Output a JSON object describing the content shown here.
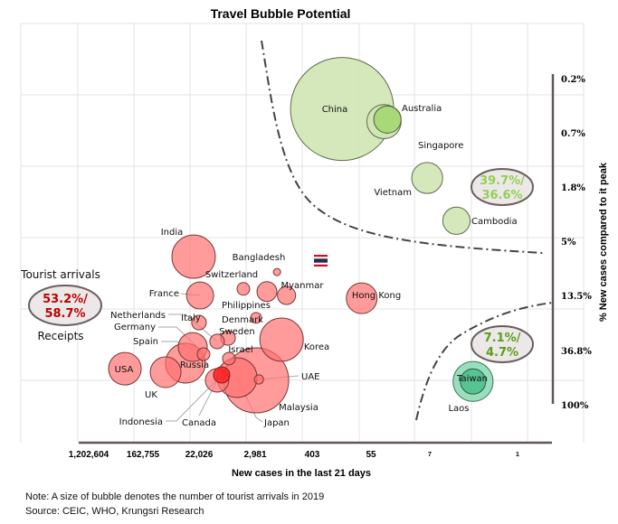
{
  "chart_data": {
    "type": "bubble",
    "title": "Travel Bubble Potential",
    "xlabel": "New cases in the last 21 days",
    "ylabel": "% New cases compared to it peak",
    "x_scale": "log, reversed",
    "y_scale": "log",
    "x_ticks": [
      "1,202,604",
      "162,755",
      "22,026",
      "2,981",
      "403",
      "55",
      "7",
      "1"
    ],
    "y_ticks": [
      "0.2%",
      "0.7%",
      "1.8%",
      "5%",
      "13.5%",
      "36.8%",
      "100%"
    ],
    "grid": true,
    "colors": {
      "red_group": "#ff7f7f",
      "green_group": "#cfe6b4",
      "dark_green": "#9fd46a",
      "teal": "#4fc08d"
    },
    "points": [
      {
        "name": "China",
        "x": 154,
        "y": 0.42,
        "size": 100,
        "group": "green"
      },
      {
        "name": "Singapore",
        "x": 35,
        "y": 0.53,
        "size": 11,
        "group": "green"
      },
      {
        "name": "Australia",
        "x": 31,
        "y": 0.51,
        "size": 7,
        "group": "dark_green"
      },
      {
        "name": "Vietnam",
        "x": 7.6,
        "y": 1.5,
        "size": 9,
        "group": "green"
      },
      {
        "name": "Cambodia",
        "x": 2.7,
        "y": 3.3,
        "size": 7,
        "group": "green"
      },
      {
        "name": "Laos",
        "x": 1.5,
        "y": 64,
        "size": 15,
        "group": "teal_light"
      },
      {
        "name": "Taiwan",
        "x": 1.5,
        "y": 64,
        "size": 6,
        "group": "teal"
      },
      {
        "name": "India",
        "x": 29400,
        "y": 6.4,
        "size": 17.7,
        "group": "red"
      },
      {
        "name": "Bangladesh",
        "x": 1540,
        "y": 8.5,
        "size": 0.5,
        "group": "red"
      },
      {
        "name": "Switzerland",
        "x": 5060,
        "y": 11.6,
        "size": 1.5,
        "group": "red"
      },
      {
        "name": "Philippines",
        "x": 2200,
        "y": 12.2,
        "size": 3.7,
        "group": "red"
      },
      {
        "name": "Myanmar",
        "x": 1100,
        "y": 13.1,
        "size": 3.1,
        "group": "red"
      },
      {
        "name": "France",
        "x": 23400,
        "y": 13.1,
        "size": 6.9,
        "group": "red"
      },
      {
        "name": "Hong Kong",
        "x": 77,
        "y": 13.8,
        "size": 8.9,
        "group": "red"
      },
      {
        "name": "Italy",
        "x": 24300,
        "y": 21.6,
        "size": 2.0,
        "group": "red"
      },
      {
        "name": "Denmark",
        "x": 3230,
        "y": 19.8,
        "size": 1.1,
        "group": "red"
      },
      {
        "name": "Korea",
        "x": 1310,
        "y": 29.6,
        "size": 17.7,
        "group": "red"
      },
      {
        "name": "Sweden",
        "x": 8700,
        "y": 28.7,
        "size": 2.0,
        "group": "red"
      },
      {
        "name": "Netherlands",
        "x": 12800,
        "y": 30.6,
        "size": 2.0,
        "group": "red"
      },
      {
        "name": "Germany",
        "x": 30300,
        "y": 33.9,
        "size": 7.9,
        "group": "red"
      },
      {
        "name": "Spain",
        "x": 20700,
        "y": 38.7,
        "size": 1.5,
        "group": "red"
      },
      {
        "name": "Russia",
        "x": 39300,
        "y": 45.7,
        "size": 14.9,
        "group": "red"
      },
      {
        "name": "Israel",
        "x": 8440,
        "y": 42,
        "size": 1.5,
        "group": "red"
      },
      {
        "name": "USA",
        "x": 334000,
        "y": 50.6,
        "size": 10,
        "group": "red"
      },
      {
        "name": "UK",
        "x": 79100,
        "y": 54,
        "size": 8.9,
        "group": "red"
      },
      {
        "name": "Malaysia",
        "x": 3230,
        "y": 62.7,
        "size": 40,
        "group": "red"
      },
      {
        "name": "Japan",
        "x": 6310,
        "y": 59.6,
        "size": 14.9,
        "group": "red"
      },
      {
        "name": "Canada",
        "x": 12800,
        "y": 62.7,
        "size": 5.2,
        "group": "red"
      },
      {
        "name": "Indonesia",
        "x": 10900,
        "y": 56.7,
        "size": 2.5,
        "group": "red_dark"
      },
      {
        "name": "UAE",
        "x": 2920,
        "y": 61.7,
        "size": 0.8,
        "group": "red"
      }
    ],
    "annotations": {
      "left_top": "Tourist arrivals",
      "left_bottom": "Receipts",
      "red_group_share": "53.2%/",
      "red_group_share2": "58.7%",
      "green_group_share": "39.7%/",
      "green_group_share2": "36.6%",
      "teal_group_share": "7.1%/",
      "teal_group_share2": "4.7%"
    },
    "marker": "thailand-flag"
  },
  "notes": {
    "line1": "Note: A size of bubble denotes the number of tourist arrivals in 2019",
    "line2": "Source: CEIC, WHO, Krungsri Research"
  }
}
